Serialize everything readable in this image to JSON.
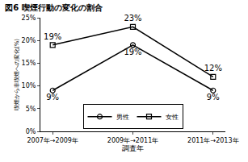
{
  "chart_data": {
    "type": "line",
    "title": "図6 喫煙行動の変化の割合",
    "x_label": "調査年",
    "y_label": "喫煙から非喫煙への変化(%)",
    "categories": [
      "2007年→2009年",
      "2009年→2011年",
      "2011年→2013年"
    ],
    "series": [
      {
        "name": "男性",
        "color": "#000000",
        "marker": "circle-open",
        "values": [
          9,
          19,
          9
        ],
        "value_labels": [
          "9%",
          "19%",
          "9%"
        ]
      },
      {
        "name": "女性",
        "color": "#000000",
        "marker": "square-open",
        "values": [
          19,
          23,
          12
        ],
        "value_labels": [
          "19%",
          "23%",
          "12%"
        ]
      }
    ],
    "ylim": [
      0,
      25
    ],
    "yticks": [
      {
        "value": 0,
        "label": "0%"
      },
      {
        "value": 5,
        "label": "5%"
      },
      {
        "value": 10,
        "label": "10%"
      },
      {
        "value": 15,
        "label": "15%"
      },
      {
        "value": 20,
        "label": "20%"
      },
      {
        "value": 25,
        "label": "25%"
      }
    ],
    "grid": false,
    "data_labels": true,
    "legend": "bottom"
  }
}
